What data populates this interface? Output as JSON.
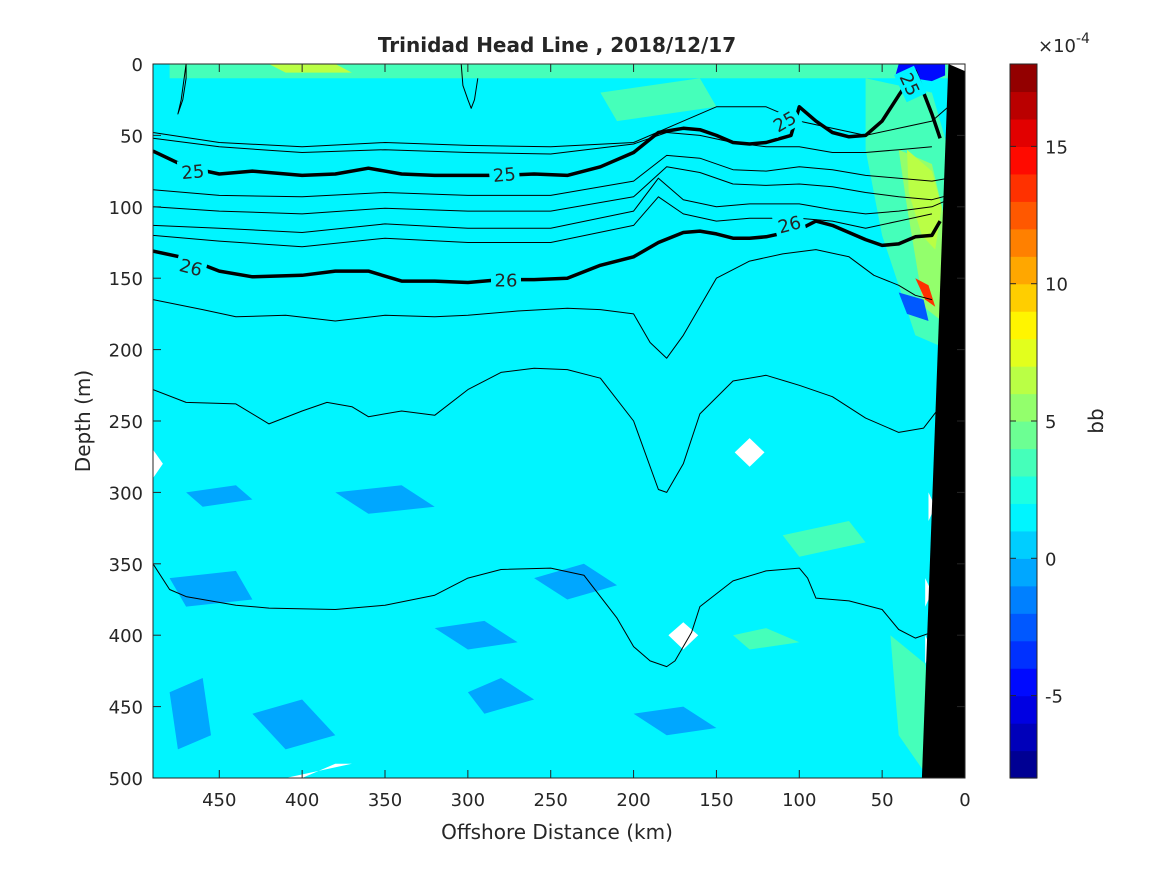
{
  "chart_data": {
    "type": "heatmap",
    "title": "Trinidad Head Line , 2018/12/17",
    "xlabel": "Offshore Distance (km)",
    "ylabel": "Depth (m)",
    "xlim": [
      490,
      0
    ],
    "ylim": [
      0,
      500
    ],
    "x_reversed": true,
    "y_reversed": true,
    "xticks": [
      450,
      400,
      350,
      300,
      250,
      200,
      150,
      100,
      50,
      0
    ],
    "yticks": [
      0,
      50,
      100,
      150,
      200,
      250,
      300,
      350,
      400,
      450,
      500
    ],
    "colorbar": {
      "label": "bb",
      "multiplier": "×10",
      "exponent": "-4",
      "range": [
        -8,
        18
      ],
      "ticks": [
        -5,
        0,
        5,
        10,
        15
      ],
      "colormap": "jet"
    },
    "background_value": 1,
    "patches": [
      {
        "x": [
          480,
          420,
          300,
          250,
          180,
          140,
          120,
          60,
          40,
          20,
          10,
          10,
          480
        ],
        "y": [
          0,
          0,
          0,
          0,
          0,
          0,
          0,
          0,
          0,
          0,
          0,
          10,
          10
        ],
        "value": 3
      },
      {
        "x": [
          420,
          380,
          370,
          410
        ],
        "y": [
          0,
          0,
          6,
          6
        ],
        "value": 7
      },
      {
        "x": [
          60,
          20,
          10,
          10,
          30,
          50,
          60
        ],
        "y": [
          10,
          20,
          60,
          200,
          190,
          120,
          60
        ],
        "value": 3
      },
      {
        "x": [
          40,
          20,
          12,
          14,
          25,
          35
        ],
        "y": [
          60,
          70,
          110,
          180,
          170,
          100
        ],
        "value": 5
      },
      {
        "x": [
          35,
          20,
          14,
          18,
          26,
          34
        ],
        "y": [
          60,
          75,
          100,
          130,
          120,
          90
        ],
        "value": 7
      },
      {
        "x": [
          30,
          22,
          16,
          20,
          27
        ],
        "y": [
          430,
          440,
          470,
          500,
          470
        ],
        "value": 6
      },
      {
        "x": [
          45,
          24,
          18,
          22,
          40
        ],
        "y": [
          400,
          420,
          470,
          500,
          470
        ],
        "value": 3
      },
      {
        "x": [
          40,
          12,
          12,
          20,
          42
        ],
        "y": [
          0,
          0,
          8,
          12,
          8
        ],
        "value": -5
      },
      {
        "x": [
          30,
          22,
          18,
          24
        ],
        "y": [
          150,
          155,
          170,
          165
        ],
        "value": 13
      },
      {
        "x": [
          40,
          25,
          22,
          35
        ],
        "y": [
          160,
          165,
          180,
          175
        ],
        "value": -3
      },
      {
        "x": [
          220,
          160,
          150,
          210
        ],
        "y": [
          20,
          10,
          30,
          40
        ],
        "value": 3
      },
      {
        "x": [
          140,
          120,
          100,
          130
        ],
        "y": [
          400,
          395,
          405,
          410
        ],
        "value": 3
      },
      {
        "x": [
          110,
          70,
          60,
          100
        ],
        "y": [
          330,
          320,
          335,
          345
        ],
        "value": 3
      },
      {
        "x": [
          480,
          460,
          455,
          475
        ],
        "y": [
          440,
          430,
          470,
          480
        ],
        "value": -1
      },
      {
        "x": [
          480,
          440,
          430,
          470
        ],
        "y": [
          360,
          355,
          375,
          380
        ],
        "value": -1
      },
      {
        "x": [
          380,
          340,
          320,
          360
        ],
        "y": [
          300,
          295,
          310,
          315
        ],
        "value": -1
      },
      {
        "x": [
          320,
          290,
          270,
          300
        ],
        "y": [
          395,
          390,
          405,
          410
        ],
        "value": -1
      },
      {
        "x": [
          300,
          280,
          260,
          290
        ],
        "y": [
          440,
          430,
          445,
          455
        ],
        "value": -1
      },
      {
        "x": [
          430,
          400,
          380,
          410
        ],
        "y": [
          455,
          445,
          470,
          480
        ],
        "value": -1
      },
      {
        "x": [
          260,
          230,
          210,
          240
        ],
        "y": [
          360,
          350,
          365,
          375
        ],
        "value": -1
      },
      {
        "x": [
          200,
          170,
          150,
          180
        ],
        "y": [
          455,
          450,
          465,
          470
        ],
        "value": -1
      },
      {
        "x": [
          470,
          440,
          430,
          460
        ],
        "y": [
          300,
          295,
          305,
          310
        ],
        "value": -1
      }
    ],
    "white_patches": [
      {
        "x": [
          490,
          484,
          490
        ],
        "y": [
          270,
          280,
          290
        ]
      },
      {
        "x": [
          130,
          121,
          130,
          139
        ],
        "y": [
          262,
          272,
          282,
          272
        ]
      },
      {
        "x": [
          170,
          161,
          170,
          179
        ],
        "y": [
          391,
          400,
          410,
          400
        ]
      },
      {
        "x": [
          400,
          380,
          370,
          410,
          420
        ],
        "y": [
          500,
          490,
          490,
          500,
          500
        ]
      },
      {
        "x": [
          11,
          0,
          0
        ],
        "y": [
          0,
          0,
          10
        ]
      },
      {
        "x": [
          22,
          18,
          22
        ],
        "y": [
          300,
          310,
          320
        ]
      },
      {
        "x": [
          24,
          20,
          24
        ],
        "y": [
          360,
          370,
          380
        ]
      },
      {
        "x": [
          24,
          20,
          24
        ],
        "y": [
          400,
          410,
          420
        ]
      }
    ],
    "bathymetry": {
      "x": [
        0,
        0,
        26,
        10
      ],
      "y": [
        5,
        500,
        500,
        0
      ]
    },
    "contours": [
      {
        "label": "25",
        "bold": true,
        "x": [
          490,
          470,
          450,
          430,
          400,
          380,
          360,
          340,
          320,
          300,
          280,
          260,
          240,
          220,
          200,
          185,
          170,
          160,
          150,
          140,
          130,
          120,
          105,
          100,
          90,
          80,
          70,
          60,
          50,
          40,
          30,
          25,
          20,
          15
        ],
        "y": [
          61,
          72,
          77,
          75,
          78,
          77,
          73,
          77,
          78,
          78,
          78,
          77,
          78,
          72,
          62,
          48,
          45,
          46,
          50,
          55,
          56,
          55,
          50,
          30,
          40,
          48,
          51,
          50,
          40,
          22,
          5,
          20,
          35,
          52
        ]
      },
      {
        "label": "26",
        "bold": true,
        "x": [
          490,
          470,
          450,
          430,
          400,
          380,
          360,
          340,
          320,
          300,
          280,
          260,
          240,
          220,
          200,
          185,
          170,
          160,
          150,
          140,
          130,
          120,
          100,
          90,
          80,
          60,
          50,
          40,
          30,
          20,
          15
        ],
        "y": [
          131,
          136,
          145,
          149,
          148,
          145,
          145,
          152,
          152,
          153,
          151,
          151,
          150,
          141,
          135,
          125,
          118,
          117,
          119,
          122,
          122,
          121,
          116,
          110,
          113,
          123,
          127,
          126,
          121,
          120,
          110
        ]
      },
      {
        "label": "",
        "bold": false,
        "x": [
          490,
          450,
          400,
          350,
          300,
          250,
          200,
          170,
          150,
          120,
          100,
          80,
          60,
          40,
          20,
          10
        ],
        "y": [
          48,
          55,
          58,
          55,
          57,
          58,
          55,
          40,
          30,
          30,
          40,
          45,
          50,
          45,
          40,
          30
        ]
      },
      {
        "label": "",
        "bold": false,
        "x": [
          490,
          450,
          400,
          350,
          300,
          250,
          200,
          180,
          160,
          140,
          120,
          100,
          80,
          60,
          40,
          20
        ],
        "y": [
          52,
          58,
          62,
          60,
          62,
          63,
          56,
          48,
          50,
          55,
          58,
          58,
          62,
          62,
          60,
          58
        ]
      },
      {
        "label": "",
        "bold": false,
        "x": [
          490,
          450,
          400,
          350,
          300,
          250,
          200,
          180,
          160,
          140,
          120,
          100,
          80,
          60,
          40,
          20,
          10
        ],
        "y": [
          88,
          92,
          93,
          90,
          92,
          92,
          82,
          64,
          66,
          74,
          75,
          72,
          74,
          78,
          80,
          82,
          80
        ]
      },
      {
        "label": "",
        "bold": false,
        "x": [
          490,
          450,
          400,
          350,
          300,
          250,
          200,
          180,
          160,
          140,
          120,
          100,
          80,
          60,
          40,
          20,
          10
        ],
        "y": [
          100,
          103,
          105,
          101,
          103,
          103,
          93,
          72,
          76,
          84,
          85,
          84,
          86,
          90,
          93,
          95,
          92
        ]
      },
      {
        "label": "",
        "bold": false,
        "x": [
          490,
          450,
          400,
          350,
          300,
          250,
          200,
          185,
          170,
          150,
          130,
          110,
          100,
          90,
          80,
          60,
          40,
          20,
          10
        ],
        "y": [
          113,
          115,
          118,
          112,
          115,
          115,
          103,
          80,
          95,
          100,
          98,
          98,
          98,
          100,
          102,
          105,
          103,
          100,
          95
        ]
      },
      {
        "label": "",
        "bold": false,
        "x": [
          490,
          450,
          400,
          350,
          300,
          250,
          200,
          185,
          170,
          150,
          130,
          100,
          80,
          60,
          40,
          20
        ],
        "y": [
          120,
          124,
          128,
          122,
          125,
          125,
          113,
          93,
          105,
          110,
          108,
          108,
          110,
          115,
          110,
          105
        ]
      },
      {
        "label": "",
        "bold": false,
        "x": [
          490,
          460,
          440,
          410,
          380,
          350,
          320,
          300,
          270,
          240,
          220,
          200,
          190,
          180,
          170,
          150,
          130,
          110,
          90,
          70,
          55,
          40,
          30,
          20
        ],
        "y": [
          165,
          172,
          177,
          176,
          180,
          176,
          177,
          176,
          173,
          171,
          172,
          175,
          195,
          206,
          190,
          150,
          138,
          133,
          130,
          135,
          148,
          155,
          162,
          165
        ]
      },
      {
        "label": "",
        "bold": false,
        "x": [
          490,
          470,
          440,
          420,
          400,
          385,
          370,
          360,
          340,
          320,
          300,
          280,
          260,
          240,
          220,
          200,
          185,
          180,
          170,
          160,
          140,
          120,
          100,
          80,
          60,
          40,
          25,
          15
        ],
        "y": [
          228,
          237,
          238,
          252,
          243,
          237,
          240,
          247,
          243,
          246,
          228,
          216,
          213,
          214,
          220,
          250,
          298,
          300,
          280,
          245,
          222,
          218,
          225,
          233,
          248,
          258,
          255,
          240
        ]
      },
      {
        "label": "",
        "bold": false,
        "x": [
          490,
          480,
          470,
          440,
          420,
          380,
          350,
          320,
          300,
          280,
          250,
          230,
          210,
          200,
          190,
          180,
          175,
          165,
          160,
          140,
          120,
          100,
          95,
          90,
          70,
          50,
          40,
          30,
          20
        ],
        "y": [
          350,
          368,
          373,
          379,
          381,
          382,
          379,
          372,
          360,
          354,
          353,
          358,
          388,
          408,
          418,
          422,
          418,
          398,
          380,
          362,
          355,
          353,
          360,
          374,
          376,
          382,
          396,
          402,
          398
        ]
      },
      {
        "label": "",
        "bold": false,
        "x": [
          470,
          470,
          472,
          475,
          473,
          470
        ],
        "y": [
          0,
          10,
          25,
          35,
          25,
          0
        ]
      },
      {
        "label": "",
        "bold": false,
        "x": [
          304,
          303,
          300,
          298,
          296,
          294
        ],
        "y": [
          0,
          15,
          25,
          31,
          25,
          10
        ]
      }
    ],
    "contour_labels": [
      {
        "text": "25",
        "x": 466,
        "y": 75,
        "rotate": -5
      },
      {
        "text": "25",
        "x": 278,
        "y": 77,
        "rotate": -5
      },
      {
        "text": "25",
        "x": 109,
        "y": 40,
        "rotate": -30
      },
      {
        "text": "25",
        "x": 33,
        "y": 14,
        "rotate": 65
      },
      {
        "text": "26",
        "x": 467,
        "y": 142,
        "rotate": 15
      },
      {
        "text": "26",
        "x": 277,
        "y": 151,
        "rotate": 0
      },
      {
        "text": "26",
        "x": 106,
        "y": 112,
        "rotate": -15
      }
    ]
  }
}
